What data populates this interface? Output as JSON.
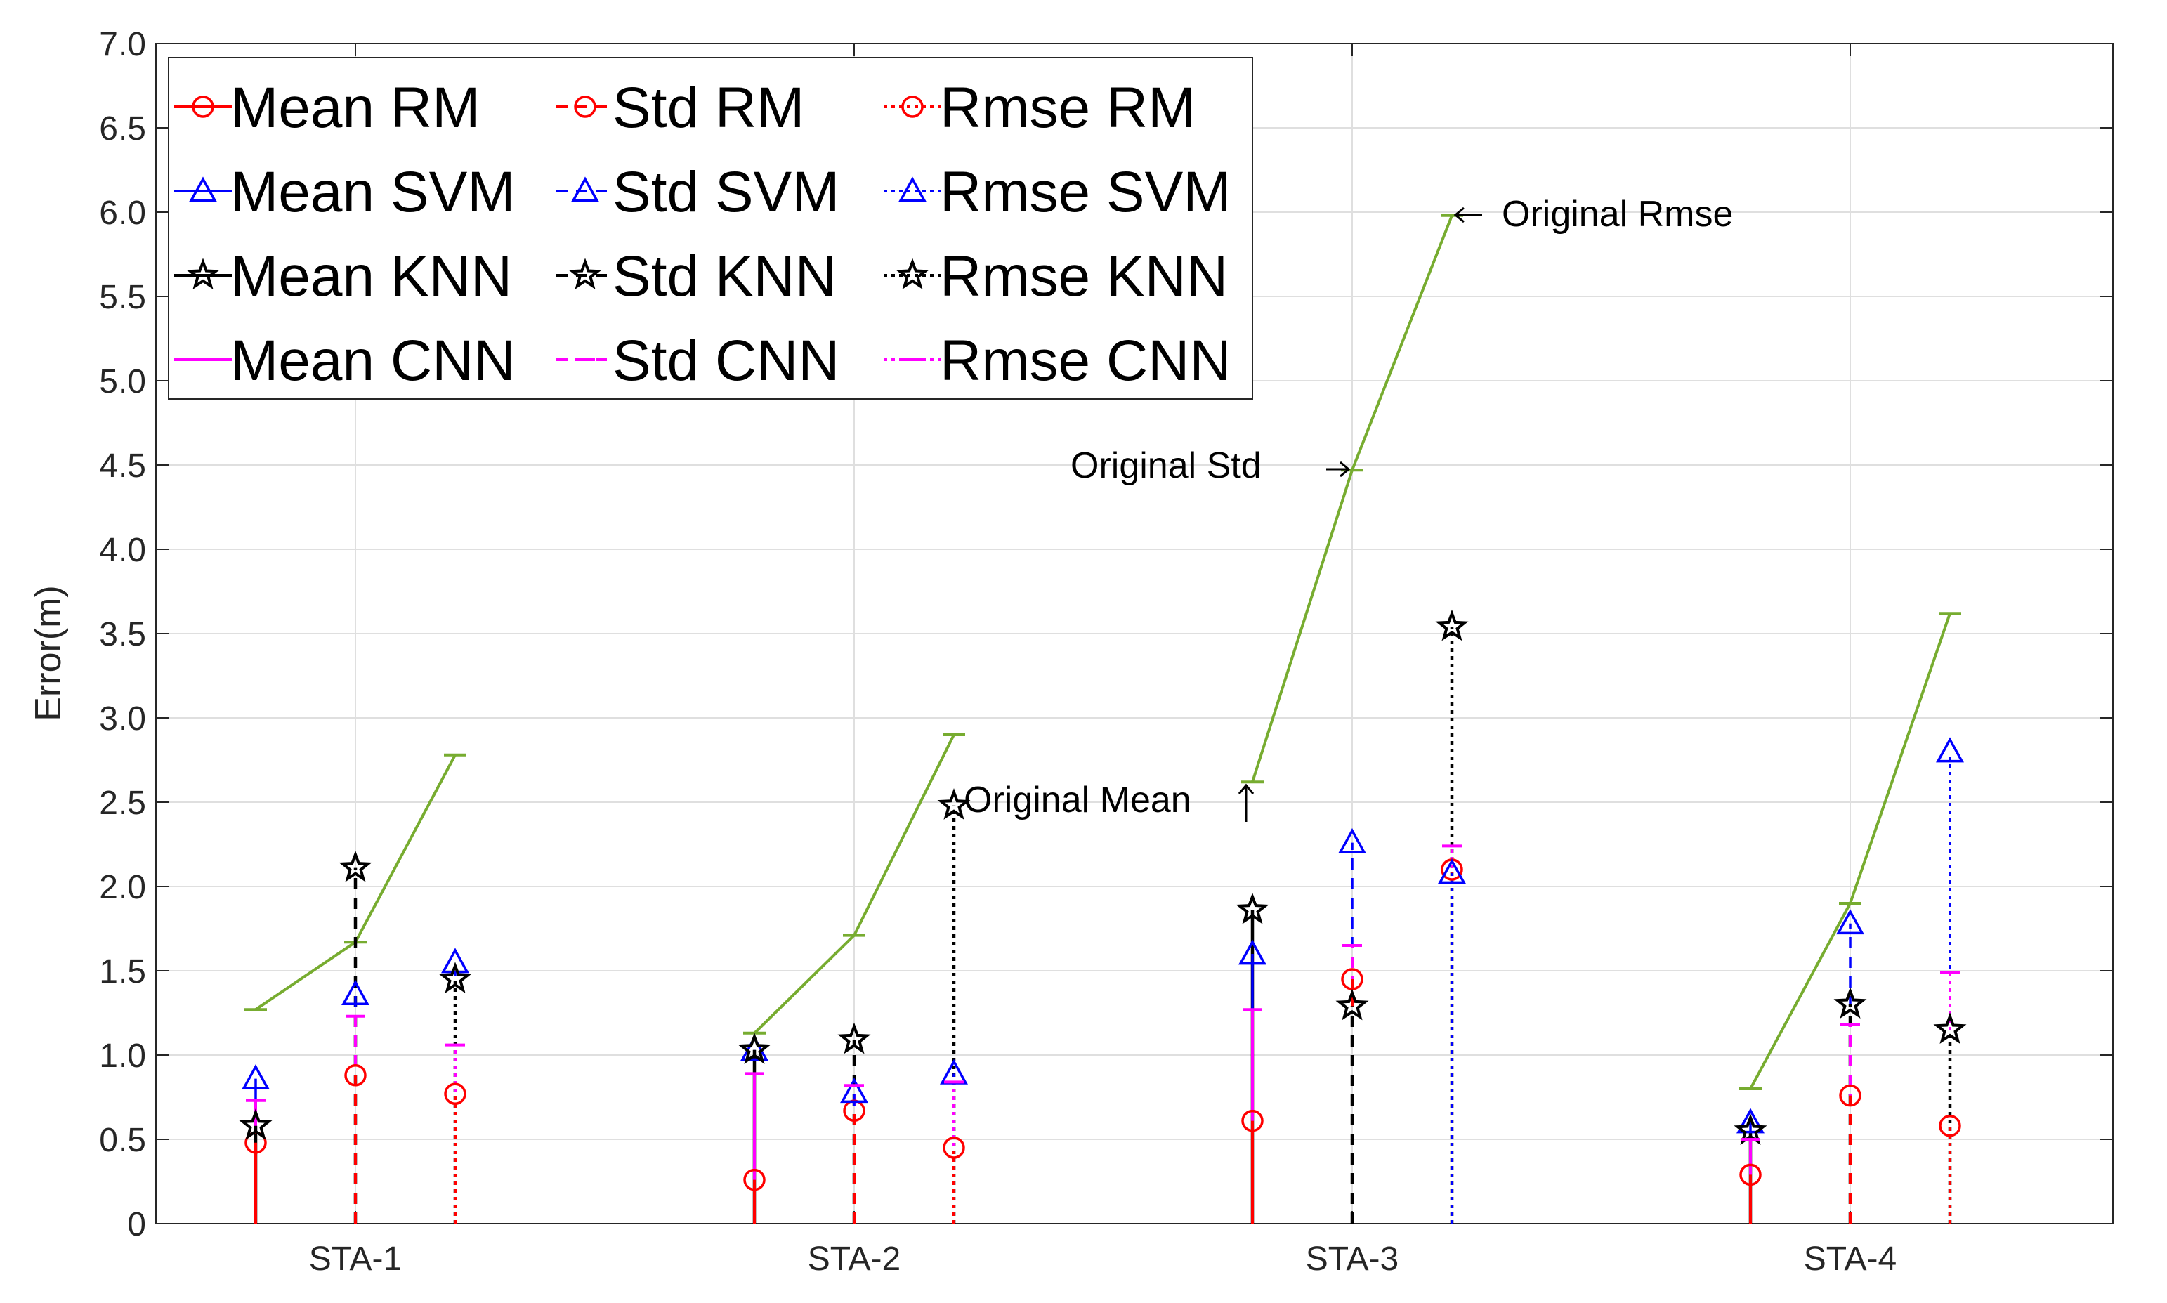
{
  "chart_data": {
    "type": "stem",
    "title": "",
    "xlabel": "",
    "ylabel": "Error(m)",
    "ylim": [
      0,
      7
    ],
    "yticks": [
      "0",
      "0.5",
      "1.0",
      "1.5",
      "2.0",
      "2.5",
      "3.0",
      "3.5",
      "4.0",
      "4.5",
      "5.0",
      "5.5",
      "6.0",
      "6.5",
      "7.0"
    ],
    "grid": true,
    "categories": [
      "STA-1",
      "STA-2",
      "STA-3",
      "STA-4"
    ],
    "metrics": [
      "Mean",
      "Std",
      "Rmse"
    ],
    "series": [
      {
        "name": "RM",
        "color": "#ff0000",
        "marker": "circle",
        "values": [
          [
            0.48,
            0.88,
            0.77
          ],
          [
            0.26,
            0.67,
            0.45
          ],
          [
            0.61,
            1.45,
            2.1
          ],
          [
            0.29,
            0.76,
            0.58
          ]
        ]
      },
      {
        "name": "SVM",
        "color": "#0000ff",
        "marker": "triangle",
        "values": [
          [
            0.86,
            1.36,
            1.55
          ],
          [
            1.03,
            0.78,
            0.89
          ],
          [
            1.6,
            2.26,
            2.08
          ],
          [
            0.6,
            1.78,
            2.8
          ]
        ]
      },
      {
        "name": "KNN",
        "color": "#000000",
        "marker": "star",
        "values": [
          [
            0.58,
            2.11,
            1.45
          ],
          [
            1.03,
            1.09,
            2.48
          ],
          [
            1.86,
            1.29,
            3.54
          ],
          [
            0.55,
            1.3,
            1.15
          ]
        ]
      },
      {
        "name": "CNN",
        "color": "#ff00ff",
        "marker": "dash",
        "values": [
          [
            0.73,
            1.23,
            1.06
          ],
          [
            0.89,
            0.82,
            0.84
          ],
          [
            1.27,
            1.65,
            2.24
          ],
          [
            0.5,
            1.18,
            1.49
          ]
        ]
      }
    ],
    "original": {
      "color": "#77ac30",
      "values": [
        [
          1.27,
          1.67,
          2.78
        ],
        [
          1.13,
          1.71,
          2.9
        ],
        [
          2.62,
          4.47,
          5.98
        ],
        [
          0.8,
          1.9,
          3.62
        ]
      ]
    },
    "legend": {
      "placement": "top-left",
      "entries": [
        "Mean RM",
        "Std RM",
        "Rmse RM",
        "Mean SVM",
        "Std SVM",
        "Rmse SVM",
        "Mean KNN",
        "Std KNN",
        "Rmse KNN",
        "Mean CNN",
        "Std CNN",
        "Rmse CNN"
      ]
    },
    "annotations": {
      "original_mean": "Original Mean",
      "original_std": "Original Std",
      "original_rmse": "Original Rmse"
    }
  }
}
